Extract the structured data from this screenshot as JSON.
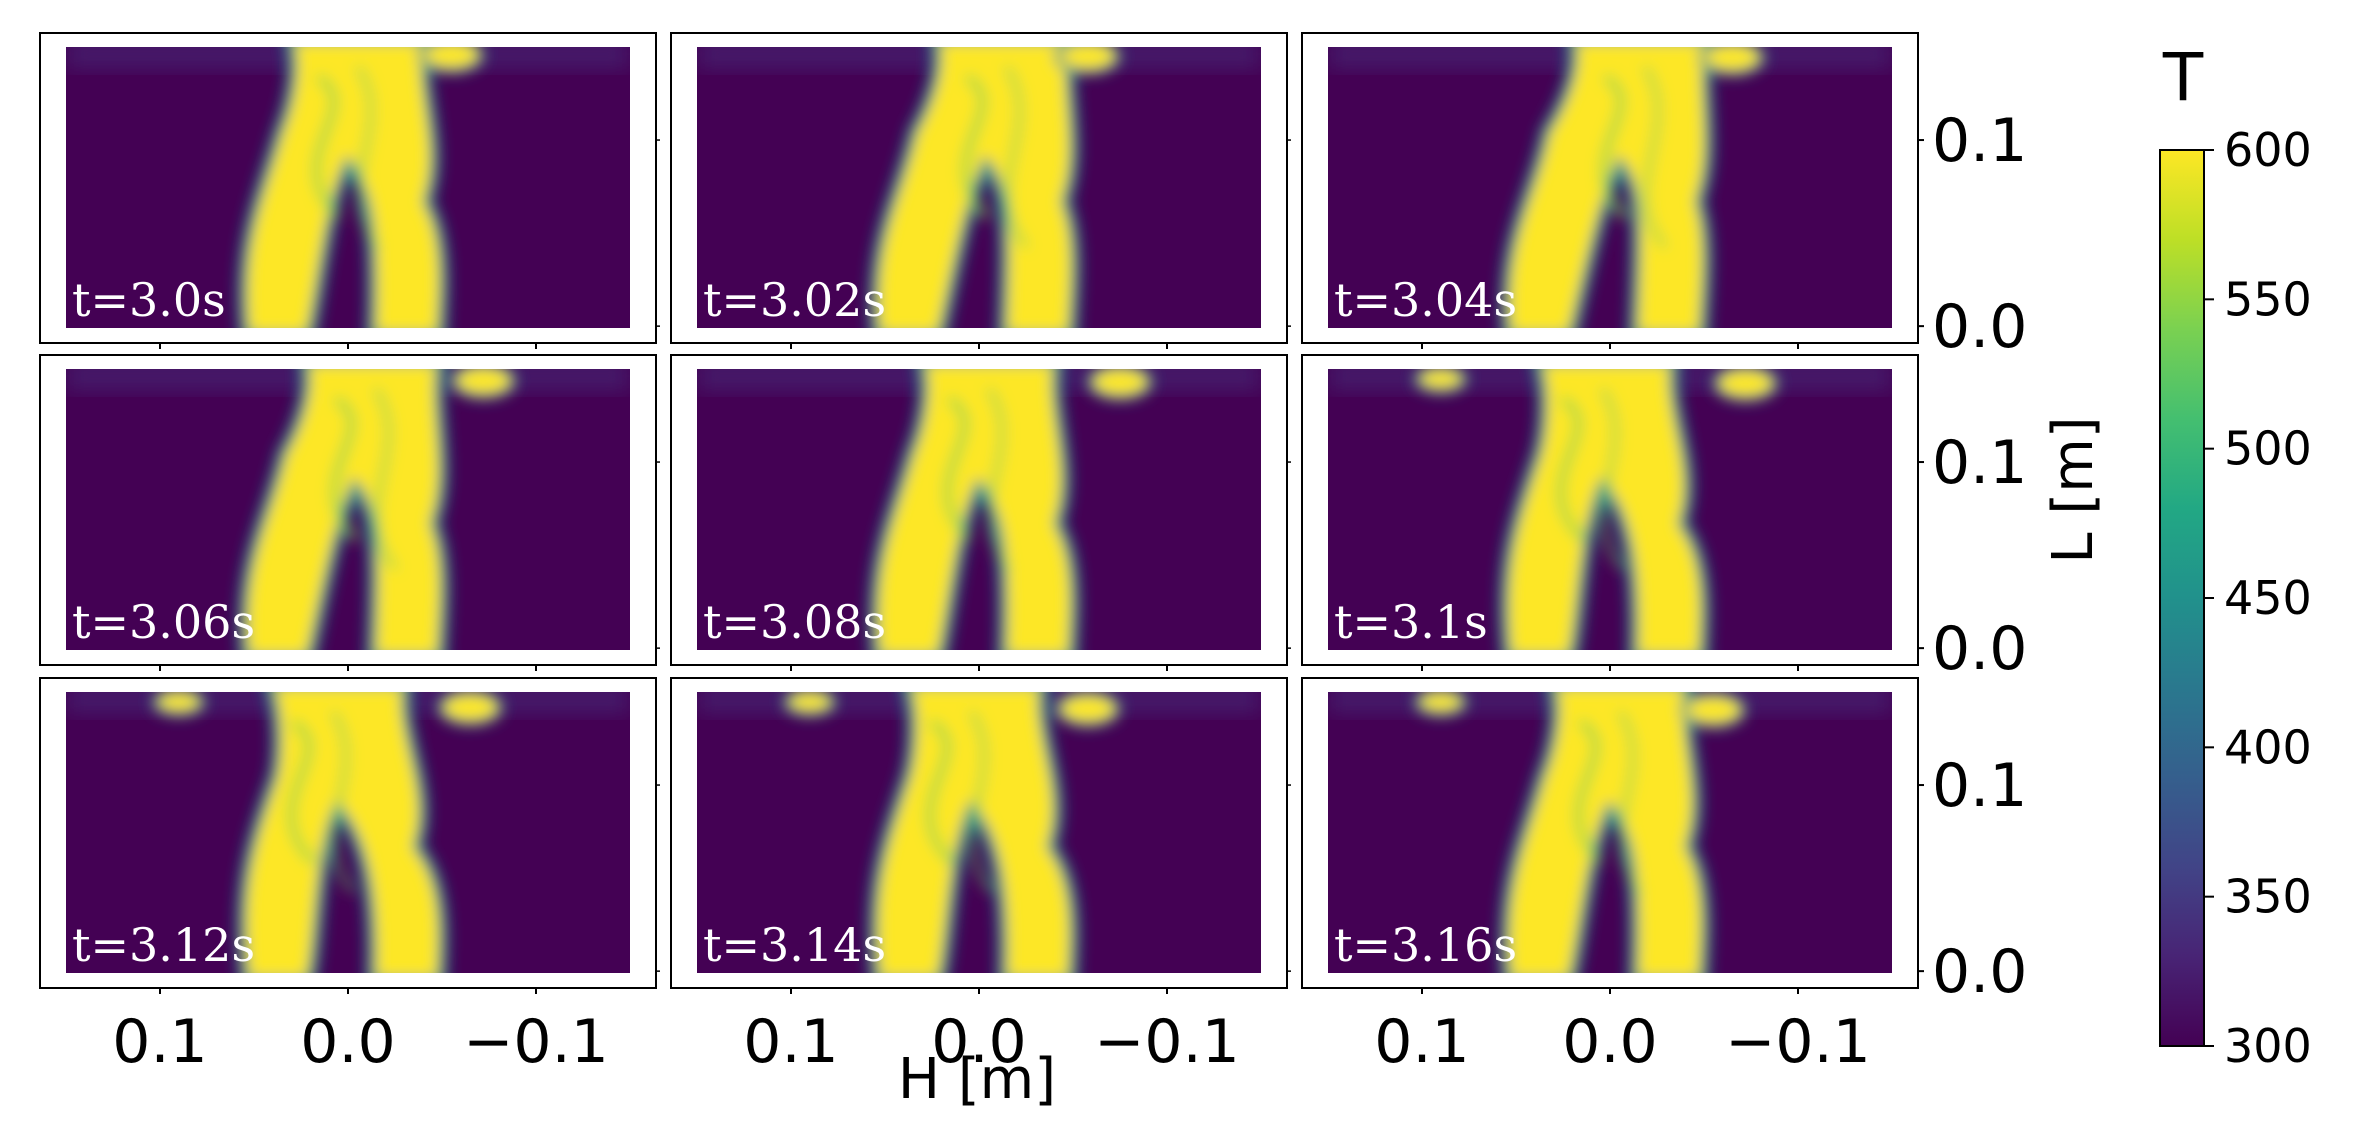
{
  "chart_data": {
    "type": "heatmap",
    "title": "",
    "xlabel": "H [m]",
    "ylabel": "L [m]",
    "x_ticks": [
      "0.1",
      "0.0",
      "−0.1"
    ],
    "x_tick_values": [
      0.1,
      0.0,
      -0.1
    ],
    "xlim": [
      0.15,
      -0.15
    ],
    "x_axis_direction": "reversed",
    "y_ticks": [
      "0.1",
      "0.0"
    ],
    "y_tick_values": [
      0.1,
      0.0
    ],
    "ylim": [
      -0.001,
      0.15
    ],
    "grid": false,
    "layout": "3x3 grid of panels, shared x and y axes",
    "colorbar": {
      "label": "T",
      "colormap": "viridis",
      "range": [
        300,
        600
      ],
      "ticks": [
        "600",
        "550",
        "500",
        "450",
        "400",
        "350",
        "300"
      ],
      "tick_values": [
        600,
        550,
        500,
        450,
        400,
        350,
        300
      ]
    },
    "colors": {
      "cold": "#440154",
      "hot": "#fde725"
    },
    "panels": [
      {
        "time_label": "t=3.0s",
        "time": 3.0
      },
      {
        "time_label": "t=3.02s",
        "time": 3.02
      },
      {
        "time_label": "t=3.04s",
        "time": 3.04
      },
      {
        "time_label": "t=3.06s",
        "time": 3.06
      },
      {
        "time_label": "t=3.08s",
        "time": 3.08
      },
      {
        "time_label": "t=3.1s",
        "time": 3.1
      },
      {
        "time_label": "t=3.12s",
        "time": 3.12
      },
      {
        "time_label": "t=3.14s",
        "time": 3.14
      },
      {
        "time_label": "t=3.16s",
        "time": 3.16
      }
    ]
  }
}
